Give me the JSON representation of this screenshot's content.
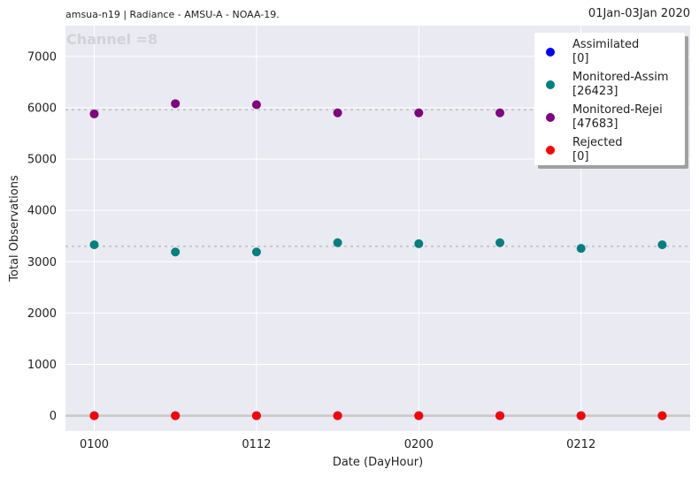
{
  "header": {
    "left": "amsua-n19  |  Radiance - AMSU-A - NOAA-19.",
    "right": "01Jan-03Jan 2020"
  },
  "chart_data": {
    "type": "scatter",
    "title": "",
    "annotation": "Channel =8",
    "xlabel": "Date (DayHour)",
    "ylabel": "Total Observations",
    "x": [
      "0100",
      "0106",
      "0112",
      "0118",
      "0200",
      "0206",
      "0212",
      "0218"
    ],
    "xticks": [
      "0100",
      "0112",
      "0200",
      "0212"
    ],
    "yticks": [
      0,
      1000,
      2000,
      3000,
      4000,
      5000,
      6000,
      7000
    ],
    "ylim": [
      -300,
      7600
    ],
    "grid": true,
    "legend_position": "top-right",
    "colors": {
      "plot_bg": "#eaeaf2",
      "grid": "#ffffff",
      "mean_line": "#c8c8c8"
    },
    "series": [
      {
        "name": "Assimilated",
        "count": "[0]",
        "color": "#0000ff",
        "values": [
          0,
          0,
          0,
          0,
          0,
          0,
          0,
          0
        ],
        "mean": 0
      },
      {
        "name": "Monitored-Assim",
        "count": "[26423]",
        "color": "#008080",
        "values": [
          3330,
          3190,
          3190,
          3370,
          3350,
          3370,
          3260,
          3330
        ],
        "mean": 3300
      },
      {
        "name": "Monitored-Rejei",
        "count": "[47683]",
        "color": "#800080",
        "values": [
          5880,
          6080,
          6060,
          5900,
          5900,
          5900,
          null,
          null
        ],
        "mean": 5960
      },
      {
        "name": "Rejected",
        "count": "[0]",
        "color": "#ff0000",
        "values": [
          0,
          0,
          0,
          0,
          0,
          0,
          0,
          0
        ],
        "mean": 0
      }
    ]
  }
}
